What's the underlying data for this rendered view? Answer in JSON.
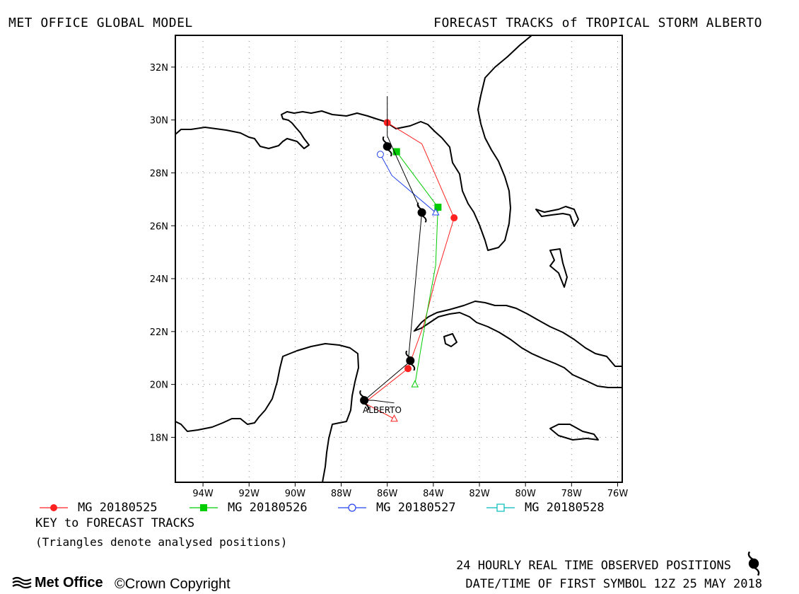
{
  "header": {
    "left": "MET OFFICE GLOBAL MODEL",
    "right": "FORECAST TRACKS of TROPICAL STORM ALBERTO"
  },
  "map": {
    "lat_labels": [
      "32N",
      "30N",
      "28N",
      "26N",
      "24N",
      "22N",
      "20N",
      "18N"
    ],
    "lon_labels": [
      "94W",
      "92W",
      "90W",
      "88W",
      "86W",
      "84W",
      "82W",
      "80W",
      "78W",
      "76W"
    ],
    "storm_label": "ALBERTO",
    "lon_range": [
      -95.2,
      -75.8
    ],
    "lat_range": [
      16.3,
      33.2
    ],
    "grid": "dotted",
    "observed_positions": [
      {
        "lon": -87.0,
        "lat": 19.4
      },
      {
        "lon": -85.0,
        "lat": 20.9
      },
      {
        "lon": -84.5,
        "lat": 26.5
      },
      {
        "lon": -86.0,
        "lat": 29.0
      }
    ]
  },
  "tracks": [
    {
      "label": "MG 20180525",
      "color": "#ff2020",
      "marker": "filled-circle",
      "points": [
        {
          "lon": -85.7,
          "lat": 18.7
        },
        {
          "lon": -87.0,
          "lat": 19.3
        },
        {
          "lon": -85.1,
          "lat": 20.6
        },
        {
          "lon": -84.4,
          "lat": 22.3
        },
        {
          "lon": -83.9,
          "lat": 24.0
        },
        {
          "lon": -83.1,
          "lat": 26.3
        },
        {
          "lon": -84.5,
          "lat": 29.1
        },
        {
          "lon": -86.0,
          "lat": 29.9
        }
      ],
      "symbols": [
        {
          "lon": -85.1,
          "lat": 20.6
        },
        {
          "lon": -83.1,
          "lat": 26.3
        },
        {
          "lon": -86.0,
          "lat": 29.9
        }
      ],
      "analysed": [
        {
          "lon": -85.7,
          "lat": 18.7
        }
      ]
    },
    {
      "label": "MG 20180526",
      "color": "#00cc00",
      "marker": "filled-square",
      "points": [
        {
          "lon": -84.8,
          "lat": 20.0
        },
        {
          "lon": -84.3,
          "lat": 22.6
        },
        {
          "lon": -83.9,
          "lat": 24.5
        },
        {
          "lon": -83.8,
          "lat": 26.7
        },
        {
          "lon": -85.6,
          "lat": 28.8
        }
      ],
      "symbols": [
        {
          "lon": -83.8,
          "lat": 26.7
        },
        {
          "lon": -85.6,
          "lat": 28.8
        }
      ],
      "analysed": [
        {
          "lon": -84.8,
          "lat": 20.0
        }
      ]
    },
    {
      "label": "MG 20180527",
      "color": "#2244ee",
      "marker": "open-circle",
      "points": [
        {
          "lon": -83.9,
          "lat": 26.5
        },
        {
          "lon": -85.8,
          "lat": 27.9
        },
        {
          "lon": -86.3,
          "lat": 28.7
        }
      ],
      "symbols": [
        {
          "lon": -86.3,
          "lat": 28.7
        }
      ],
      "analysed": [
        {
          "lon": -83.9,
          "lat": 26.5
        }
      ]
    },
    {
      "label": "MG 20180528",
      "color": "#00bbbb",
      "marker": "open-square",
      "points": [],
      "symbols": [],
      "analysed": []
    }
  ],
  "observed_track": {
    "color": "#000000",
    "points": [
      {
        "lon": -85.7,
        "lat": 19.3
      },
      {
        "lon": -86.6,
        "lat": 19.4
      },
      {
        "lon": -87.0,
        "lat": 19.4
      },
      {
        "lon": -85.1,
        "lat": 20.8
      },
      {
        "lon": -84.5,
        "lat": 26.5
      },
      {
        "lon": -85.8,
        "lat": 29.0
      },
      {
        "lon": -86.0,
        "lat": 29.4
      },
      {
        "lon": -86.0,
        "lat": 30.9
      }
    ]
  },
  "footer": {
    "key_title": "KEY to FORECAST TRACKS",
    "key_note": "(Triangles denote analysed positions)",
    "observed": "24 HOURLY REAL TIME OBSERVED POSITIONS",
    "first_symbol": "DATE/TIME OF FIRST SYMBOL 12Z 25 MAY 2018",
    "logo": "Met Office",
    "copyright": "Crown Copyright"
  }
}
